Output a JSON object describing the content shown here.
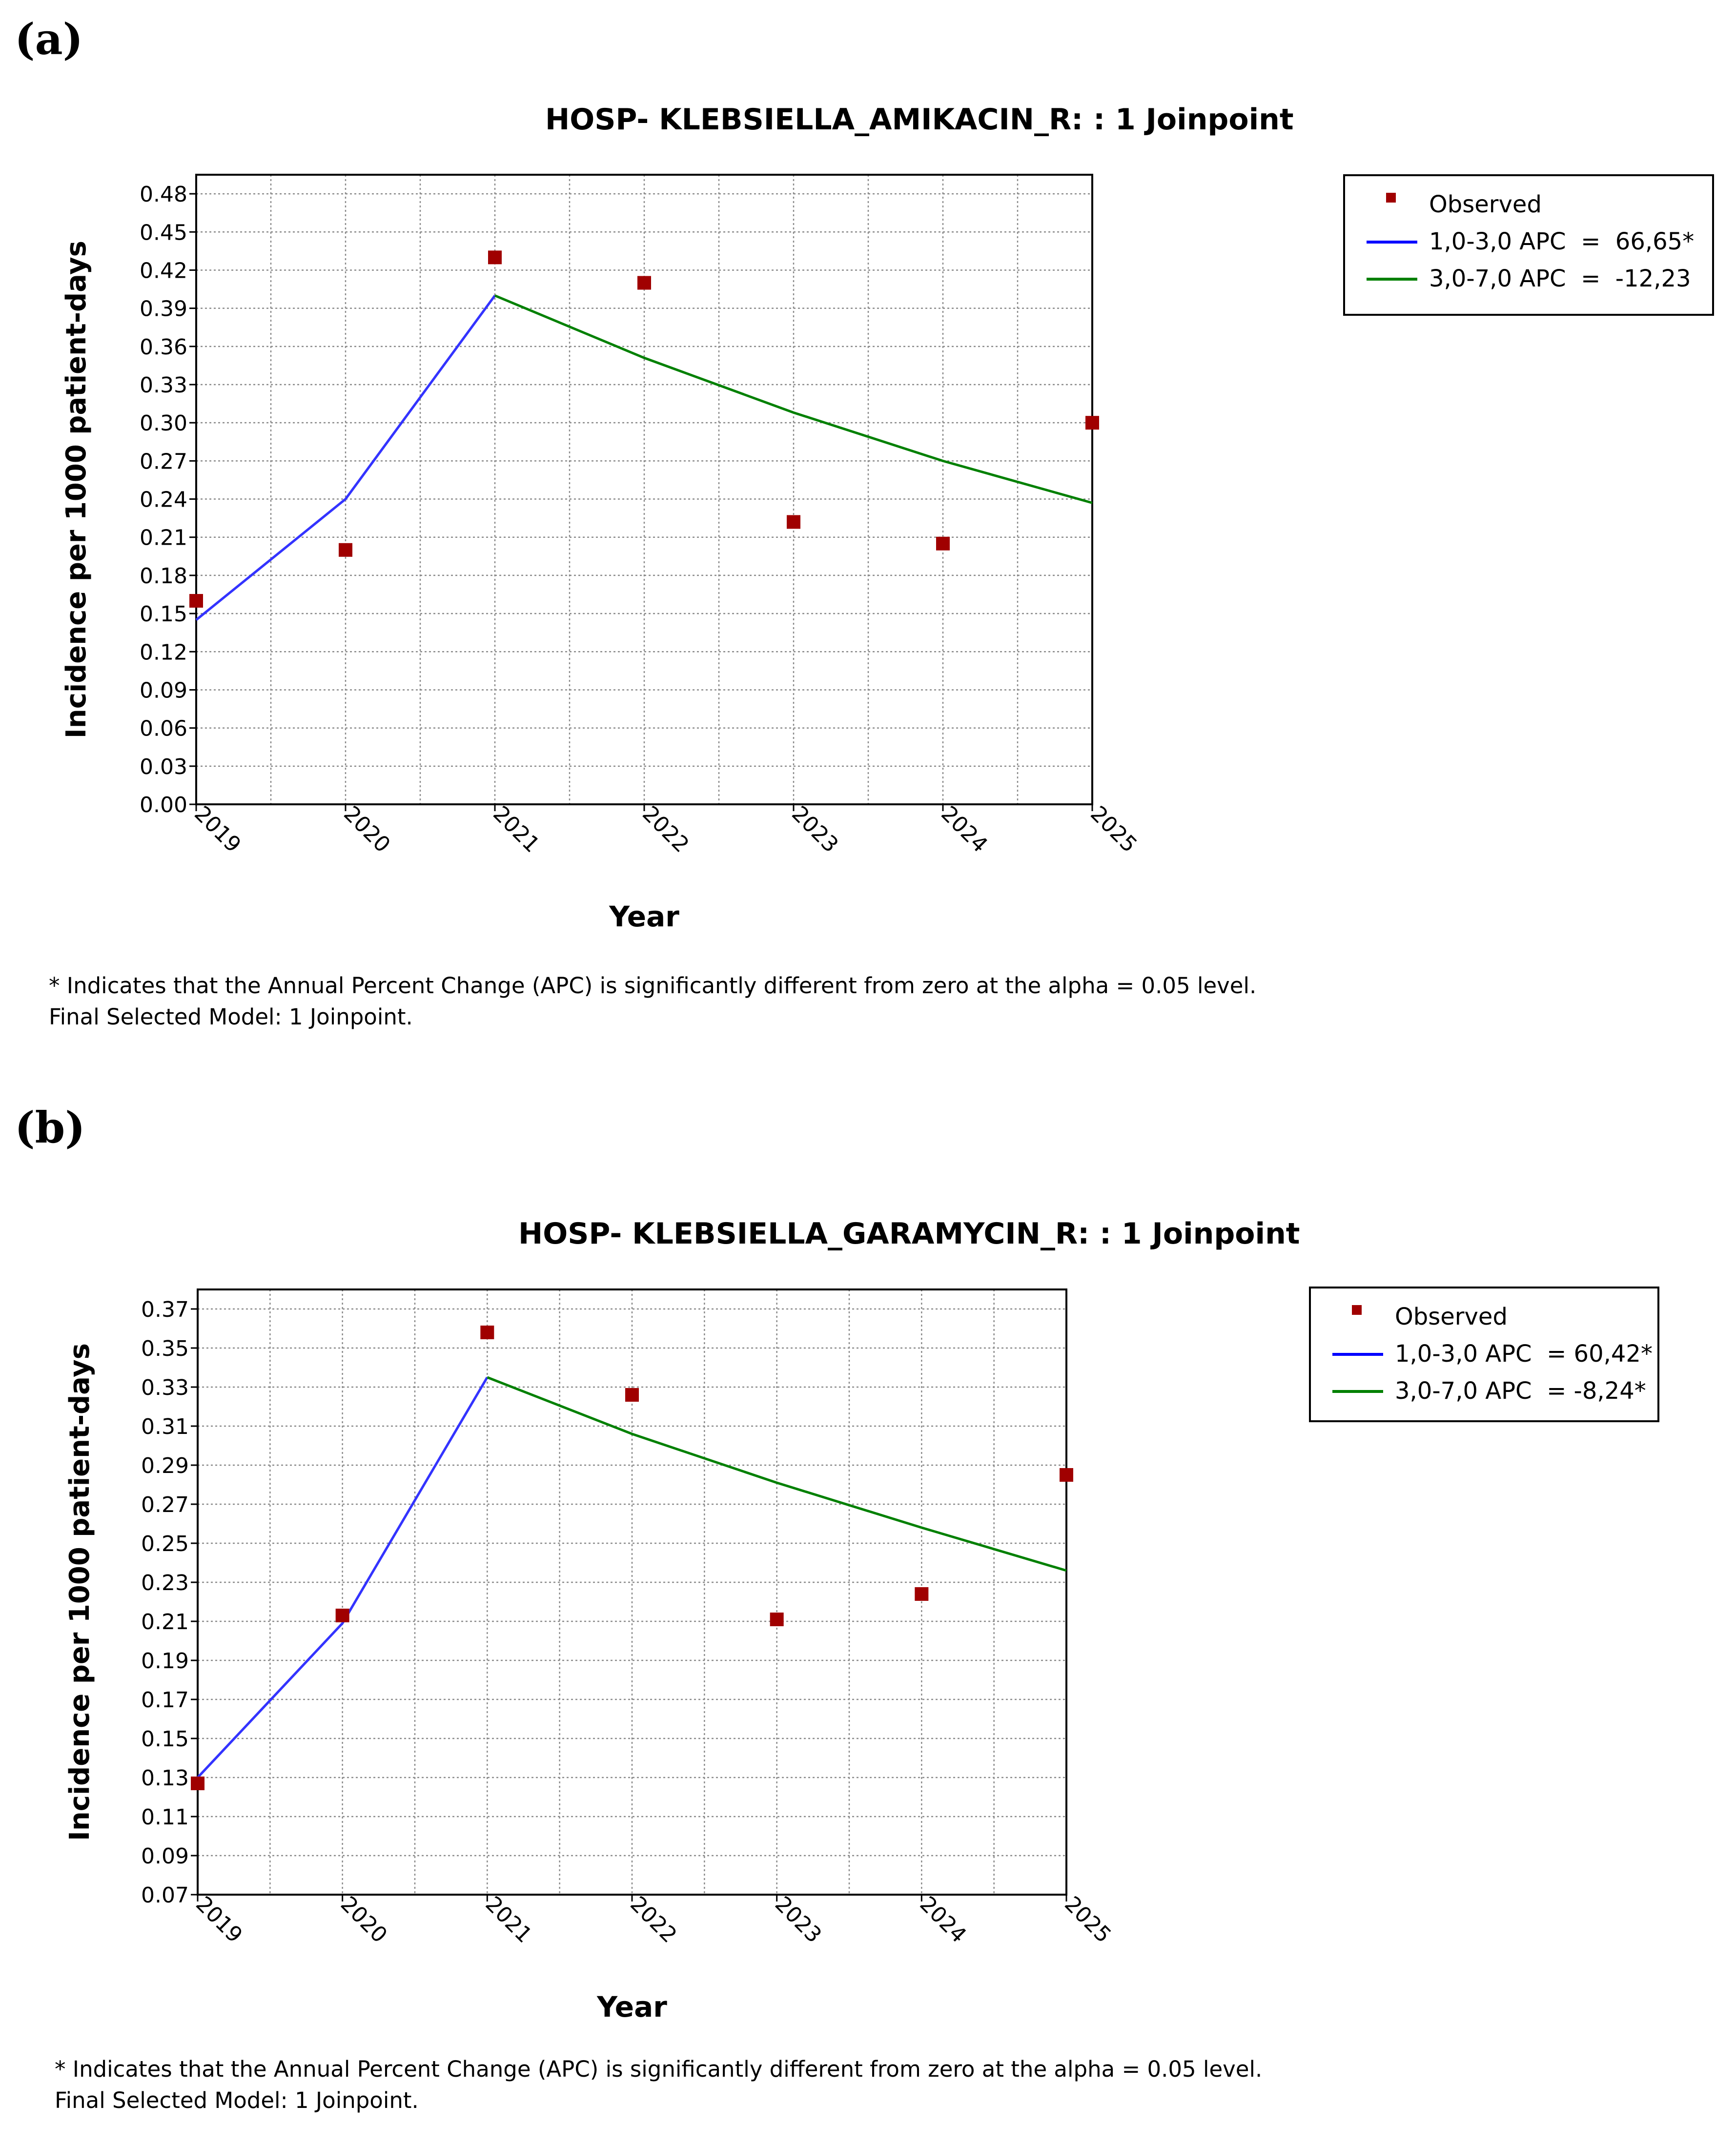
{
  "panels": [
    {
      "label": "(a)",
      "footnote_line1": "* Indicates that the Annual Percent Change (APC) is significantly different from zero at the alpha = 0.05 level.",
      "footnote_line2": "Final Selected Model: 1 Joinpoint.",
      "legend": [
        {
          "label": "Observed",
          "kind": "marker",
          "color": "#a00000"
        },
        {
          "label": "1,0-3,0 APC  =  66,65*",
          "kind": "line",
          "color": "#0000ff"
        },
        {
          "label": "3,0-7,0 APC  =  -12,23",
          "kind": "line",
          "color": "#008000"
        }
      ]
    },
    {
      "label": "(b)",
      "footnote_line1": "* Indicates that the Annual Percent Change (APC) is significantly different from zero at the alpha = 0.05 level.",
      "footnote_line2": "Final Selected Model: 1 Joinpoint.",
      "legend": [
        {
          "label": "Observed",
          "kind": "marker",
          "color": "#a00000"
        },
        {
          "label": "1,0-3,0 APC  = 60,42*",
          "kind": "line",
          "color": "#0000ff"
        },
        {
          "label": "3,0-7,0 APC  = -8,24*",
          "kind": "line",
          "color": "#008000"
        }
      ]
    }
  ],
  "chart_data": [
    {
      "type": "scatter",
      "title": "HOSP- KLEBSIELLA_AMIKACIN_R: : 1 Joinpoint",
      "xlabel": "Year",
      "ylabel": "Incidence per 1000 patient-days",
      "x_ticks": [
        "2019",
        "2020",
        "2021",
        "2022",
        "2023",
        "2024",
        "2025"
      ],
      "xlim": [
        2019,
        2025
      ],
      "y_ticks": [
        "0.00",
        "0.03",
        "0.06",
        "0.09",
        "0.12",
        "0.15",
        "0.18",
        "0.21",
        "0.24",
        "0.27",
        "0.30",
        "0.33",
        "0.36",
        "0.39",
        "0.42",
        "0.45",
        "0.48"
      ],
      "ylim": [
        0.0,
        0.495
      ],
      "grid": true,
      "legend_position": "right",
      "observed": {
        "name": "Observed",
        "x": [
          2019,
          2020,
          2021,
          2022,
          2023,
          2024,
          2025
        ],
        "y": [
          0.16,
          0.2,
          0.43,
          0.41,
          0.222,
          0.205,
          0.3
        ]
      },
      "segments": [
        {
          "name": "1,0-3,0 APC  =  66,65*",
          "color": "#3333ff",
          "x": [
            2019,
            2020,
            2021
          ],
          "y": [
            0.145,
            0.24,
            0.4
          ]
        },
        {
          "name": "3,0-7,0 APC  =  -12,23",
          "color": "#008000",
          "x": [
            2021,
            2022,
            2023,
            2024,
            2025
          ],
          "y": [
            0.4,
            0.351,
            0.308,
            0.27,
            0.237
          ]
        }
      ]
    },
    {
      "type": "scatter",
      "title": "HOSP- KLEBSIELLA_GARAMYCIN_R: : 1 Joinpoint",
      "xlabel": "Year",
      "ylabel": "Incidence per 1000 patient-days",
      "x_ticks": [
        "2019",
        "2020",
        "2021",
        "2022",
        "2023",
        "2024",
        "2025"
      ],
      "xlim": [
        2019,
        2025
      ],
      "y_ticks": [
        "0.07",
        "0.09",
        "0.11",
        "0.13",
        "0.15",
        "0.17",
        "0.19",
        "0.21",
        "0.23",
        "0.25",
        "0.27",
        "0.29",
        "0.31",
        "0.33",
        "0.35",
        "0.37"
      ],
      "ylim": [
        0.07,
        0.38
      ],
      "grid": true,
      "legend_position": "right",
      "observed": {
        "name": "Observed",
        "x": [
          2019,
          2020,
          2021,
          2022,
          2023,
          2024,
          2025
        ],
        "y": [
          0.127,
          0.213,
          0.358,
          0.326,
          0.211,
          0.224,
          0.285
        ]
      },
      "segments": [
        {
          "name": "1,0-3,0 APC  = 60,42*",
          "color": "#3333ff",
          "x": [
            2019,
            2020,
            2021
          ],
          "y": [
            0.13,
            0.209,
            0.335
          ]
        },
        {
          "name": "3,0-7,0 APC  = -8,24*",
          "color": "#008000",
          "x": [
            2021,
            2022,
            2023,
            2024,
            2025
          ],
          "y": [
            0.335,
            0.306,
            0.281,
            0.258,
            0.236
          ]
        }
      ]
    }
  ]
}
